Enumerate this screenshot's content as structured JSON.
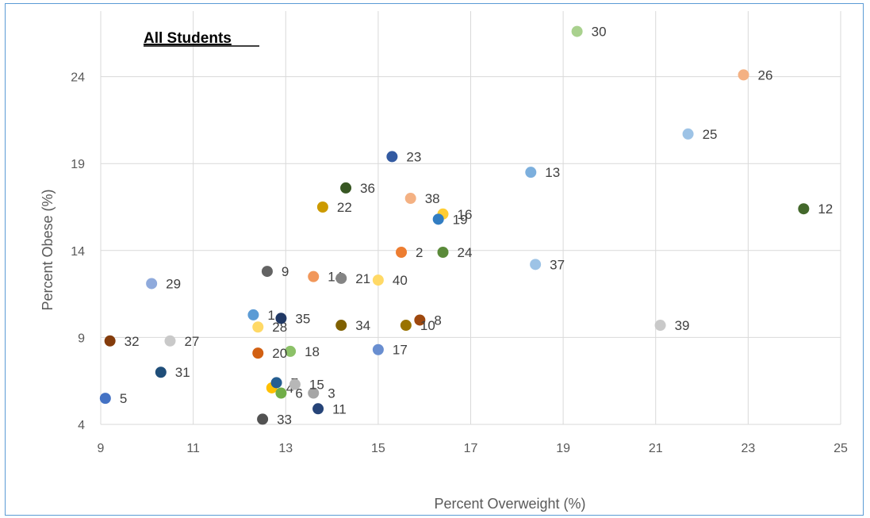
{
  "chart_data": {
    "type": "scatter",
    "title": "All Students",
    "xlabel": "Percent Overweight (%)",
    "ylabel": "Percent Obese (%)",
    "xlim": [
      9,
      25
    ],
    "ylim": [
      4,
      26
    ],
    "xticks": [
      9,
      11,
      13,
      15,
      17,
      19,
      21,
      23,
      25
    ],
    "yticks": [
      4,
      9,
      14,
      19,
      24
    ],
    "grid": "vertical-and-horizontal",
    "points": [
      {
        "label": "1",
        "x": 12.3,
        "y": 10.3,
        "color": "#5b9bd5"
      },
      {
        "label": "2",
        "x": 15.5,
        "y": 13.9,
        "color": "#ed7d31"
      },
      {
        "label": "3",
        "x": 13.6,
        "y": 5.8,
        "color": "#a5a5a5"
      },
      {
        "label": "4",
        "x": 12.7,
        "y": 6.1,
        "color": "#ffc000"
      },
      {
        "label": "5",
        "x": 9.1,
        "y": 5.5,
        "color": "#4472c4"
      },
      {
        "label": "6",
        "x": 12.9,
        "y": 5.8,
        "color": "#70ad47"
      },
      {
        "label": "7",
        "x": 12.8,
        "y": 6.4,
        "color": "#255e91"
      },
      {
        "label": "8",
        "x": 15.9,
        "y": 10.0,
        "color": "#9e480e"
      },
      {
        "label": "9",
        "x": 12.6,
        "y": 12.8,
        "color": "#636363"
      },
      {
        "label": "10",
        "x": 15.6,
        "y": 9.7,
        "color": "#997300"
      },
      {
        "label": "11",
        "x": 13.7,
        "y": 4.9,
        "color": "#264478"
      },
      {
        "label": "12",
        "x": 24.2,
        "y": 16.4,
        "color": "#43682b"
      },
      {
        "label": "13",
        "x": 18.3,
        "y": 18.5,
        "color": "#7cafdd"
      },
      {
        "label": "14",
        "x": 13.6,
        "y": 12.5,
        "color": "#f1975a"
      },
      {
        "label": "15",
        "x": 13.2,
        "y": 6.3,
        "color": "#b7b7b7"
      },
      {
        "label": "16",
        "x": 16.4,
        "y": 16.1,
        "color": "#ffcd33"
      },
      {
        "label": "17",
        "x": 15.0,
        "y": 8.3,
        "color": "#698ed0"
      },
      {
        "label": "18",
        "x": 13.1,
        "y": 8.2,
        "color": "#8cc168"
      },
      {
        "label": "19",
        "x": 16.3,
        "y": 15.8,
        "color": "#327dc2"
      },
      {
        "label": "20",
        "x": 12.4,
        "y": 8.1,
        "color": "#d26012"
      },
      {
        "label": "21",
        "x": 14.2,
        "y": 12.4,
        "color": "#848484"
      },
      {
        "label": "22",
        "x": 13.8,
        "y": 16.5,
        "color": "#cc9a00"
      },
      {
        "label": "23",
        "x": 15.3,
        "y": 19.4,
        "color": "#335aa1"
      },
      {
        "label": "24",
        "x": 16.4,
        "y": 13.9,
        "color": "#5a8a39"
      },
      {
        "label": "25",
        "x": 21.7,
        "y": 20.7,
        "color": "#9dc3e6"
      },
      {
        "label": "26",
        "x": 22.9,
        "y": 24.1,
        "color": "#f4b183"
      },
      {
        "label": "27",
        "x": 10.5,
        "y": 8.8,
        "color": "#c9c9c9"
      },
      {
        "label": "28",
        "x": 12.4,
        "y": 9.6,
        "color": "#ffd966"
      },
      {
        "label": "29",
        "x": 10.1,
        "y": 12.1,
        "color": "#8faadc"
      },
      {
        "label": "30",
        "x": 19.3,
        "y": 26.6,
        "color": "#a9d18e"
      },
      {
        "label": "31",
        "x": 10.3,
        "y": 7.0,
        "color": "#1f4e79"
      },
      {
        "label": "32",
        "x": 9.2,
        "y": 8.8,
        "color": "#843c0c"
      },
      {
        "label": "33",
        "x": 12.5,
        "y": 4.3,
        "color": "#525252"
      },
      {
        "label": "34",
        "x": 14.2,
        "y": 9.7,
        "color": "#7f6000"
      },
      {
        "label": "35",
        "x": 12.9,
        "y": 10.1,
        "color": "#203864"
      },
      {
        "label": "36",
        "x": 14.3,
        "y": 17.6,
        "color": "#385723"
      },
      {
        "label": "37",
        "x": 18.4,
        "y": 13.2,
        "color": "#9dc3e6"
      },
      {
        "label": "38",
        "x": 15.7,
        "y": 17.0,
        "color": "#f4b183"
      },
      {
        "label": "39",
        "x": 21.1,
        "y": 9.7,
        "color": "#c9c9c9"
      },
      {
        "label": "40",
        "x": 15.0,
        "y": 12.3,
        "color": "#ffd966"
      }
    ]
  }
}
